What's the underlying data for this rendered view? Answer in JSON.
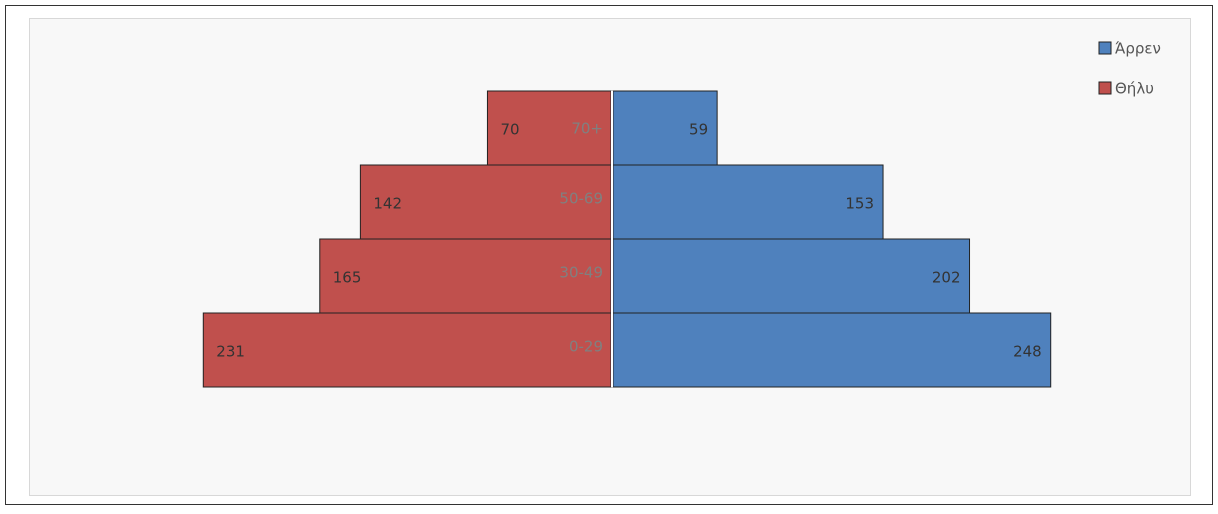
{
  "chart_data": {
    "type": "pyramid",
    "categories": [
      "70+",
      "50-69",
      "30-49",
      "0-29"
    ],
    "series": [
      {
        "name": "Άρρεν",
        "color": "#4f81bd",
        "values": [
          59,
          153,
          202,
          248
        ]
      },
      {
        "name": "Θήλυ",
        "color": "#c0504d",
        "values": [
          70,
          142,
          165,
          231
        ]
      }
    ],
    "legend": "top-right"
  }
}
